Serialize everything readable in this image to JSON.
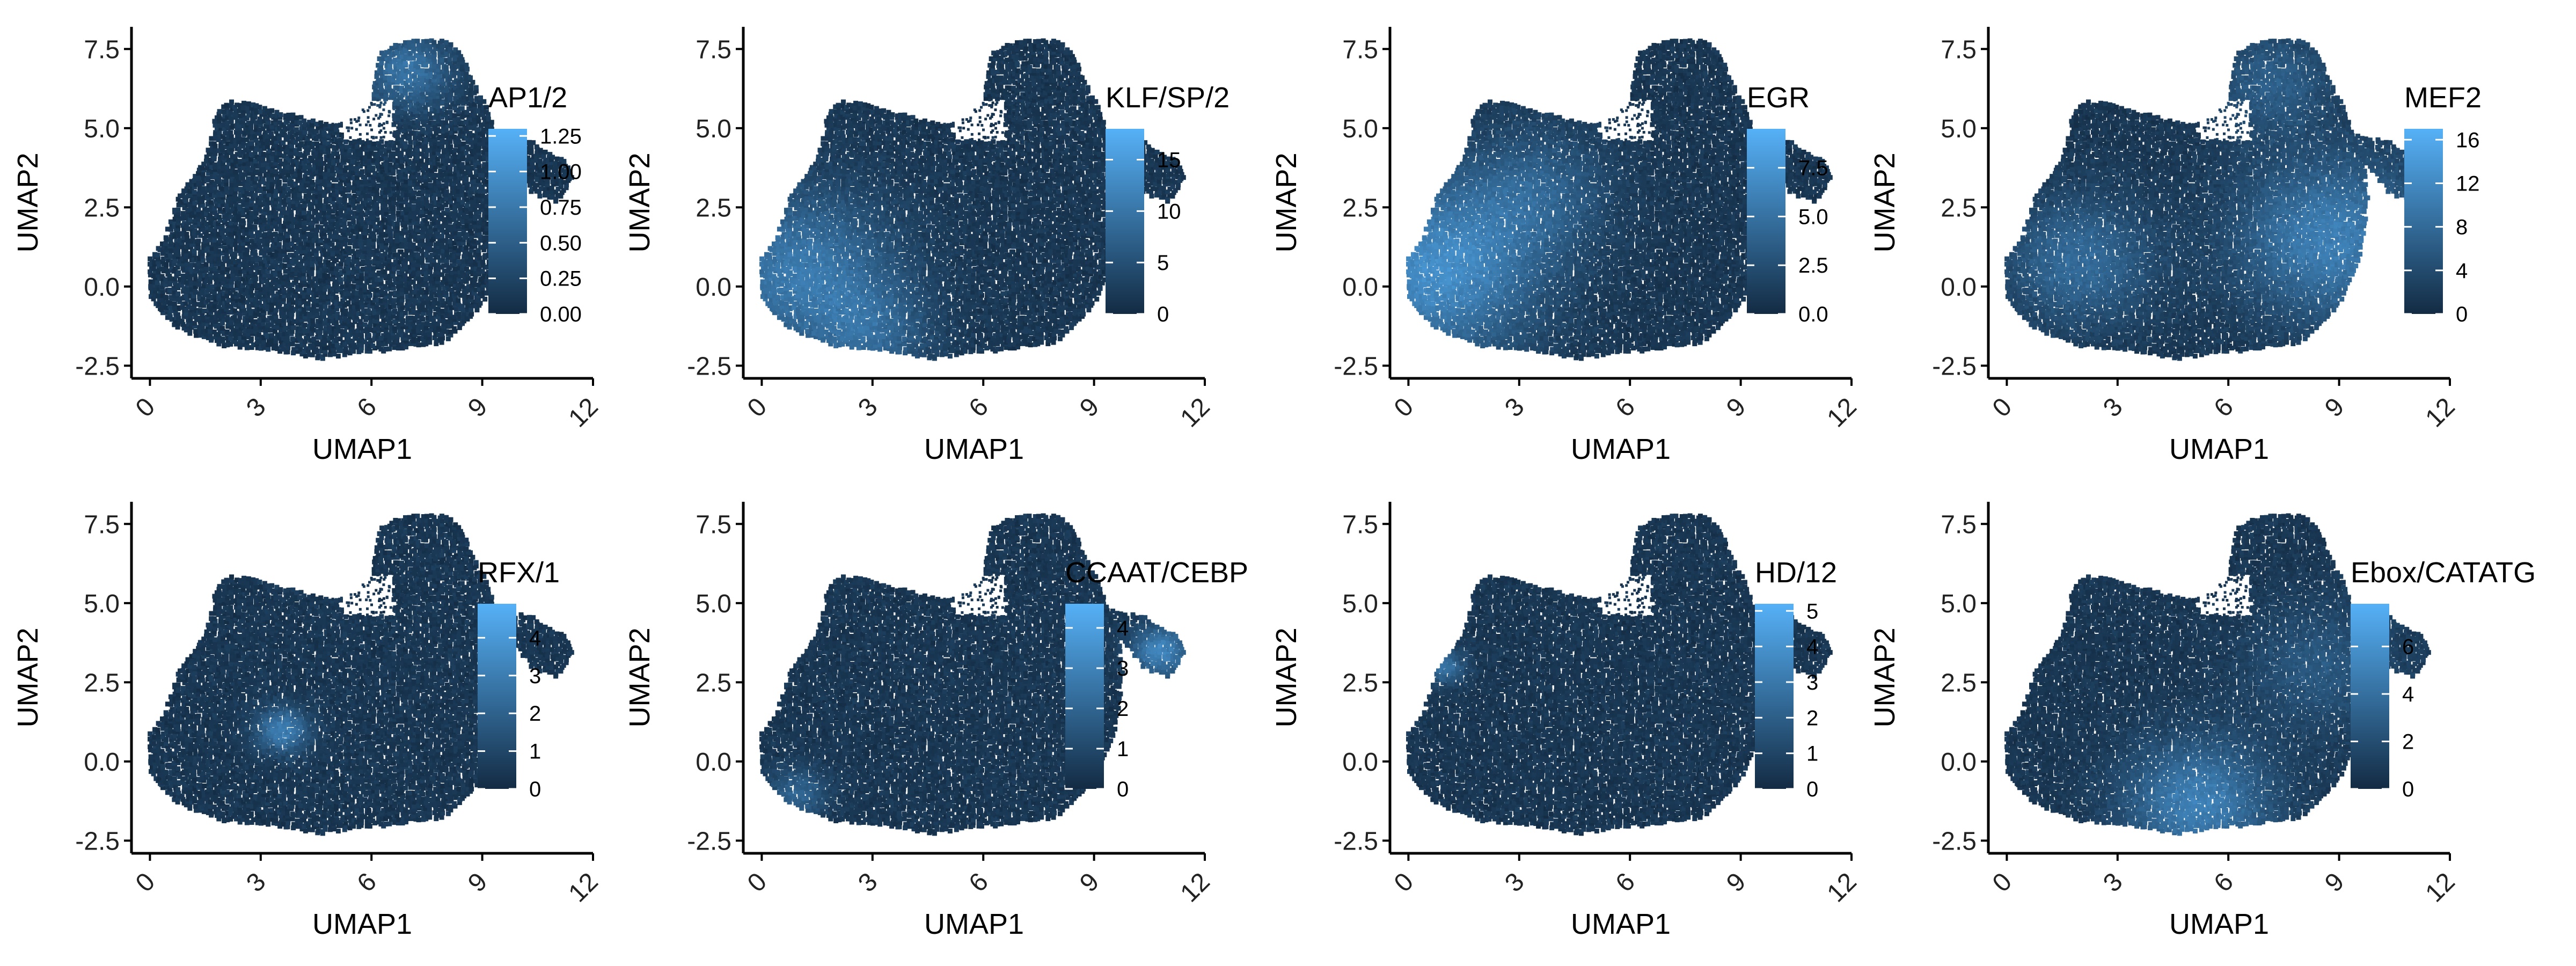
{
  "chart_data": [
    {
      "type": "scatter",
      "color_label": "AP1/2",
      "xlabel": "UMAP1",
      "ylabel": "UMAP2",
      "xlim": [
        -0.5,
        12
      ],
      "ylim": [
        -2.9,
        8.2
      ],
      "x_ticks": [
        0,
        3,
        6,
        9,
        12
      ],
      "y_ticks": [
        -2.5,
        0.0,
        2.5,
        5.0,
        7.5
      ],
      "colorbar": {
        "min": 0,
        "max": 1.3,
        "ticks": [
          "0.00",
          "0.25",
          "0.50",
          "0.75",
          "1.00",
          "1.25"
        ]
      },
      "color_low": "#132B43",
      "color_high": "#56B1F7",
      "hotspots": [
        {
          "x": 7.0,
          "y": 6.8,
          "r": 1.5,
          "w": 0.45
        }
      ]
    },
    {
      "type": "scatter",
      "color_label": "KLF/SP/2",
      "xlabel": "UMAP1",
      "ylabel": "UMAP2",
      "xlim": [
        -0.5,
        12
      ],
      "ylim": [
        -2.9,
        8.2
      ],
      "x_ticks": [
        0,
        3,
        6,
        9,
        12
      ],
      "y_ticks": [
        -2.5,
        0.0,
        2.5,
        5.0,
        7.5
      ],
      "colorbar": {
        "min": 0,
        "max": 18,
        "ticks": [
          "0",
          "5",
          "10",
          "15"
        ]
      },
      "color_low": "#132B43",
      "color_high": "#56B1F7",
      "hotspots": [
        {
          "x": 1.0,
          "y": 0.5,
          "r": 3.2,
          "w": 0.5
        },
        {
          "x": 3.0,
          "y": -1.5,
          "r": 2.0,
          "w": 0.3
        }
      ]
    },
    {
      "type": "scatter",
      "color_label": "EGR",
      "xlabel": "UMAP1",
      "ylabel": "UMAP2",
      "xlim": [
        -0.5,
        12
      ],
      "ylim": [
        -2.9,
        8.2
      ],
      "x_ticks": [
        0,
        3,
        6,
        9,
        12
      ],
      "y_ticks": [
        -2.5,
        0.0,
        2.5,
        5.0,
        7.5
      ],
      "colorbar": {
        "min": 0,
        "max": 9.5,
        "ticks": [
          "0.0",
          "2.5",
          "5.0",
          "7.5"
        ]
      },
      "color_low": "#132B43",
      "color_high": "#56B1F7",
      "hotspots": [
        {
          "x": 0.8,
          "y": 0.5,
          "r": 3.4,
          "w": 0.65
        },
        {
          "x": 3.5,
          "y": 3.0,
          "r": 2.5,
          "w": 0.3
        }
      ]
    },
    {
      "type": "scatter",
      "color_label": "MEF2",
      "xlabel": "UMAP1",
      "ylabel": "UMAP2",
      "xlim": [
        -0.5,
        12
      ],
      "ylim": [
        -2.9,
        8.2
      ],
      "x_ticks": [
        0,
        3,
        6,
        9,
        12
      ],
      "y_ticks": [
        -2.5,
        0.0,
        2.5,
        5.0,
        7.5
      ],
      "colorbar": {
        "min": 0,
        "max": 17,
        "ticks": [
          "0",
          "4",
          "8",
          "12",
          "16"
        ]
      },
      "color_low": "#132B43",
      "color_high": "#56B1F7",
      "hotspots": [
        {
          "x": 8.8,
          "y": 1.5,
          "r": 3.2,
          "w": 0.55
        },
        {
          "x": 2.0,
          "y": 0.8,
          "r": 2.5,
          "w": 0.4
        },
        {
          "x": 7.2,
          "y": 6.5,
          "r": 2.0,
          "w": 0.3
        }
      ]
    },
    {
      "type": "scatter",
      "color_label": "RFX/1",
      "xlabel": "UMAP1",
      "ylabel": "UMAP2",
      "xlim": [
        -0.5,
        12
      ],
      "ylim": [
        -2.9,
        8.2
      ],
      "x_ticks": [
        0,
        3,
        6,
        9,
        12
      ],
      "y_ticks": [
        -2.5,
        0.0,
        2.5,
        5.0,
        7.5
      ],
      "colorbar": {
        "min": 0,
        "max": 4.9,
        "ticks": [
          "0",
          "1",
          "2",
          "3",
          "4"
        ]
      },
      "color_low": "#132B43",
      "color_high": "#56B1F7",
      "hotspots": [
        {
          "x": 3.6,
          "y": 1.0,
          "r": 0.9,
          "w": 0.55
        }
      ]
    },
    {
      "type": "scatter",
      "color_label": "CCAAT/CEBP",
      "xlabel": "UMAP1",
      "ylabel": "UMAP2",
      "xlim": [
        -0.5,
        12
      ],
      "ylim": [
        -2.9,
        8.2
      ],
      "x_ticks": [
        0,
        3,
        6,
        9,
        12
      ],
      "y_ticks": [
        -2.5,
        0.0,
        2.5,
        5.0,
        7.5
      ],
      "colorbar": {
        "min": 0,
        "max": 4.6,
        "ticks": [
          "0",
          "1",
          "2",
          "3",
          "4"
        ]
      },
      "color_low": "#132B43",
      "color_high": "#56B1F7",
      "hotspots": [
        {
          "x": 10.8,
          "y": 3.5,
          "r": 1.0,
          "w": 0.6
        },
        {
          "x": 1.0,
          "y": -1.0,
          "r": 1.0,
          "w": 0.35
        }
      ]
    },
    {
      "type": "scatter",
      "color_label": "HD/12",
      "xlabel": "UMAP1",
      "ylabel": "UMAP2",
      "xlim": [
        -0.5,
        12
      ],
      "ylim": [
        -2.9,
        8.2
      ],
      "x_ticks": [
        0,
        3,
        6,
        9,
        12
      ],
      "y_ticks": [
        -2.5,
        0.0,
        2.5,
        5.0,
        7.5
      ],
      "colorbar": {
        "min": 0,
        "max": 5.2,
        "ticks": [
          "0",
          "1",
          "2",
          "3",
          "4",
          "5"
        ]
      },
      "color_low": "#132B43",
      "color_high": "#56B1F7",
      "hotspots": [
        {
          "x": 1.0,
          "y": 3.0,
          "r": 0.7,
          "w": 0.45
        }
      ]
    },
    {
      "type": "scatter",
      "color_label": "Ebox/CATATG",
      "xlabel": "UMAP1",
      "ylabel": "UMAP2",
      "xlim": [
        -0.5,
        12
      ],
      "ylim": [
        -2.9,
        8.2
      ],
      "x_ticks": [
        0,
        3,
        6,
        9,
        12
      ],
      "y_ticks": [
        -2.5,
        0.0,
        2.5,
        5.0,
        7.5
      ],
      "colorbar": {
        "min": 0,
        "max": 7.8,
        "ticks": [
          "0",
          "2",
          "4",
          "6"
        ]
      },
      "color_low": "#132B43",
      "color_high": "#56B1F7",
      "hotspots": [
        {
          "x": 5.2,
          "y": -1.3,
          "r": 2.5,
          "w": 0.55
        },
        {
          "x": 8.5,
          "y": 3.0,
          "r": 2.5,
          "w": 0.25
        }
      ]
    }
  ]
}
